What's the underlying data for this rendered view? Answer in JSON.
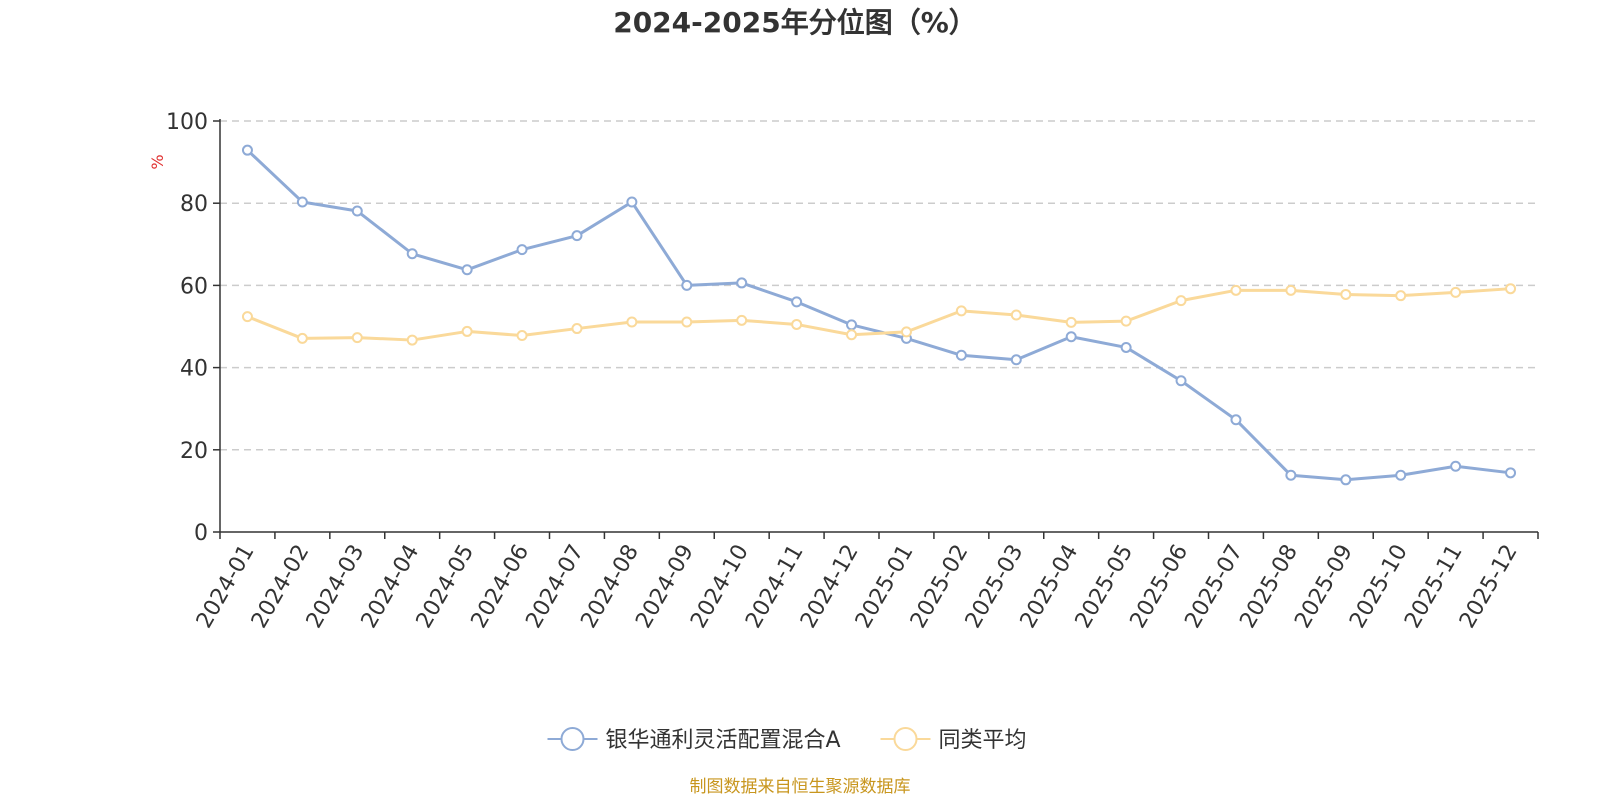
{
  "chart_data": {
    "type": "line",
    "title": "2024-2025年分位图（%）",
    "ylabel": "%",
    "xlabel": "",
    "ylim": [
      0,
      100
    ],
    "yticks": [
      0,
      20,
      40,
      60,
      80,
      100
    ],
    "grid": true,
    "legend_position": "bottom-center",
    "categories": [
      "2024-01",
      "2024-02",
      "2024-03",
      "2024-04",
      "2024-05",
      "2024-06",
      "2024-07",
      "2024-08",
      "2024-09",
      "2024-10",
      "2024-11",
      "2024-12",
      "2025-01",
      "2025-02",
      "2025-03",
      "2025-04",
      "2025-05",
      "2025-06",
      "2025-07",
      "2025-08",
      "2025-09",
      "2025-10",
      "2025-11",
      "2025-12"
    ],
    "series": [
      {
        "name": "银华通利灵活配置混合A",
        "color": "#8eaad6",
        "values": [
          92.9,
          80.3,
          78.1,
          67.7,
          63.8,
          68.7,
          72.1,
          80.3,
          60.0,
          60.6,
          56.0,
          50.4,
          47.1,
          43.0,
          41.9,
          47.5,
          44.9,
          36.8,
          27.3,
          13.8,
          12.7,
          13.8,
          16.0,
          14.4
        ]
      },
      {
        "name": "同类平均",
        "color": "#fad99a",
        "values": [
          52.4,
          47.1,
          47.3,
          46.7,
          48.8,
          47.8,
          49.5,
          51.1,
          51.1,
          51.5,
          50.5,
          48.0,
          48.7,
          53.8,
          52.8,
          51.0,
          51.3,
          56.3,
          58.8,
          58.8,
          57.8,
          57.5,
          58.3,
          59.2
        ]
      }
    ],
    "source": "制图数据来自恒生聚源数据库",
    "unit_color": "#e03030",
    "source_color": "#c8961e",
    "axis_color": "#333333",
    "grid_color": "#cccccc"
  }
}
